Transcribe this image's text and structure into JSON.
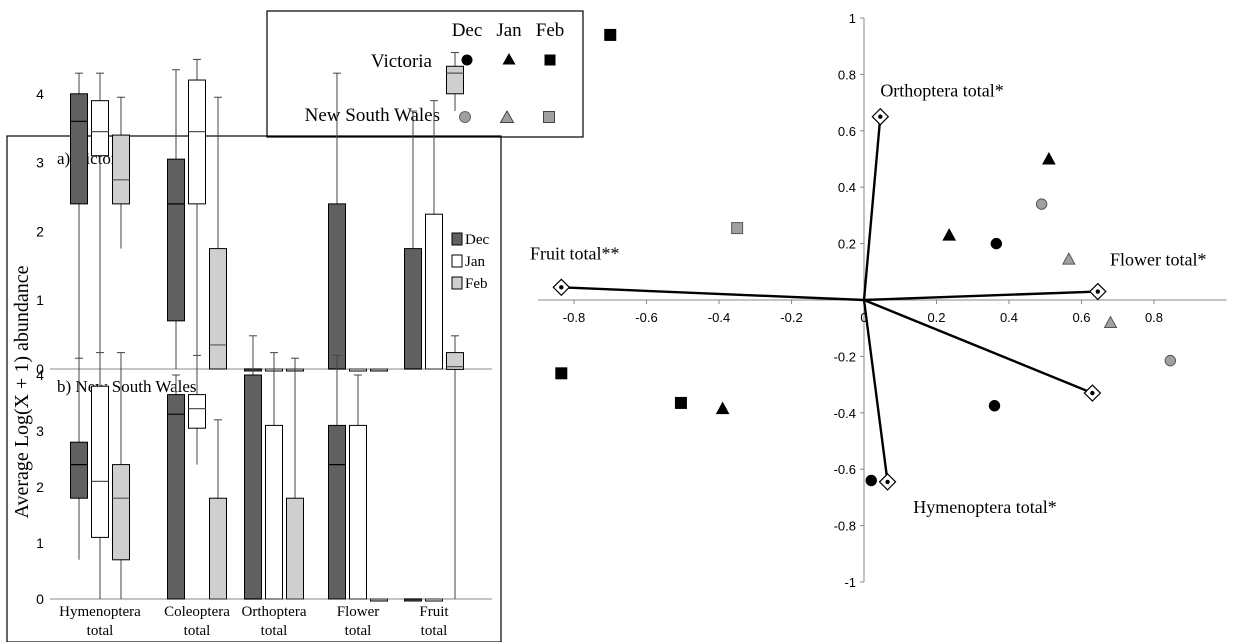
{
  "colors": {
    "dec": "#606060",
    "jan": "#ffffff",
    "feb": "#cfcfcf",
    "nsw_marker": "#a0a0a0",
    "axis": "#888888",
    "ink": "#000000"
  },
  "legend": {
    "months": [
      "Dec",
      "Jan",
      "Feb"
    ],
    "rows": [
      {
        "label": "Victoria",
        "fill": "#000000"
      },
      {
        "label": "New South Wales",
        "fill": "#a0a0a0"
      }
    ]
  },
  "ylabel_shared": "Average Log(X + 1) abundance",
  "chart_data": [
    {
      "type": "box",
      "title": "a) Victoria",
      "categories": [
        "Hymenoptera total",
        "Coleoptera total",
        "Orthoptera total",
        "Flower total",
        "Fruit total"
      ],
      "category_lines": [
        [
          "Hymenoptera",
          "total"
        ],
        [
          "Coleoptera",
          "total"
        ],
        [
          "Orthoptera",
          "total"
        ],
        [
          "Flower",
          "total"
        ],
        [
          "Fruit",
          "total"
        ]
      ],
      "ylim": [
        0,
        4.6
      ],
      "yticks": [
        0,
        1,
        2,
        3,
        4
      ],
      "legend_labels": [
        "Dec",
        "Jan",
        "Feb"
      ],
      "legend_position": "right",
      "series": [
        {
          "name": "Dec",
          "boxes": [
            {
              "min": 0,
              "q1": 2.4,
              "median": 3.6,
              "q3": 4.0,
              "max": 4.3
            },
            {
              "min": 0,
              "q1": 0.7,
              "median": 2.4,
              "q3": 3.05,
              "max": 4.35
            },
            {
              "min": 0,
              "q1": 0,
              "median": 0,
              "q3": 0,
              "max": 0
            },
            {
              "min": 0,
              "q1": 0,
              "median": 0,
              "q3": 2.4,
              "max": 4.3
            },
            {
              "min": 0,
              "q1": 0,
              "median": 0,
              "q3": 1.75,
              "max": 3.75
            }
          ]
        },
        {
          "name": "Jan",
          "boxes": [
            {
              "min": 0,
              "q1": 3.1,
              "median": 3.45,
              "q3": 3.9,
              "max": 4.3
            },
            {
              "min": 0,
              "q1": 2.4,
              "median": 3.45,
              "q3": 4.2,
              "max": 4.5
            },
            {
              "min": 0,
              "q1": 0,
              "median": 0,
              "q3": 0,
              "max": 0
            },
            {
              "min": 0,
              "q1": 0,
              "median": 0,
              "q3": 0,
              "max": 0
            },
            {
              "min": 0,
              "q1": 0,
              "median": 0,
              "q3": 2.25,
              "max": 3.9
            }
          ]
        },
        {
          "name": "Feb",
          "boxes": [
            {
              "min": 1.75,
              "q1": 2.4,
              "median": 2.75,
              "q3": 3.4,
              "max": 3.95
            },
            {
              "min": 0,
              "q1": 0,
              "median": 0.35,
              "q3": 1.75,
              "max": 3.95
            },
            {
              "min": 0,
              "q1": 0,
              "median": 0,
              "q3": 0,
              "max": 0
            },
            {
              "min": 0,
              "q1": 0,
              "median": 0,
              "q3": 0,
              "max": 0
            },
            {
              "min": 3.75,
              "q1": 4.0,
              "median": 4.3,
              "q3": 4.4,
              "max": 4.6
            }
          ]
        }
      ]
    },
    {
      "type": "box",
      "title": "b) New South Wales",
      "categories": [
        "Hymenoptera total",
        "Coleoptera total",
        "Orthoptera total",
        "Flower total",
        "Fruit total"
      ],
      "ylim": [
        0,
        4.6
      ],
      "yticks": [
        0,
        1,
        2,
        3,
        4
      ],
      "series": [
        {
          "name": "Dec",
          "boxes": [
            {
              "min": 0.7,
              "q1": 1.8,
              "median": 2.4,
              "q3": 2.8,
              "max": 4.3
            },
            {
              "min": 0,
              "q1": 0,
              "median": 3.3,
              "q3": 3.65,
              "max": 4.0
            },
            {
              "min": 0,
              "q1": 0,
              "median": 0,
              "q3": 4.0,
              "max": 4.7
            },
            {
              "min": 0,
              "q1": 0,
              "median": 2.4,
              "q3": 3.1,
              "max": 4.35
            },
            {
              "min": 0,
              "q1": 0,
              "median": 0,
              "q3": 0,
              "max": 0
            }
          ]
        },
        {
          "name": "Jan",
          "boxes": [
            {
              "min": 0,
              "q1": 1.1,
              "median": 2.1,
              "q3": 3.8,
              "max": 4.4
            },
            {
              "min": 2.4,
              "q1": 3.05,
              "median": 3.4,
              "q3": 3.65,
              "max": 4.35
            },
            {
              "min": 0,
              "q1": 0,
              "median": 0,
              "q3": 3.1,
              "max": 4.4
            },
            {
              "min": 0,
              "q1": 0,
              "median": 0,
              "q3": 3.1,
              "max": 4.0
            },
            {
              "min": 0,
              "q1": 0,
              "median": 0,
              "q3": 0,
              "max": 0
            }
          ]
        },
        {
          "name": "Feb",
          "boxes": [
            {
              "min": 0,
              "q1": 0.7,
              "median": 1.8,
              "q3": 2.4,
              "max": 4.4
            },
            {
              "min": 0,
              "q1": 0,
              "median": 0,
              "q3": 1.8,
              "max": 3.2
            },
            {
              "min": 0,
              "q1": 0,
              "median": 0,
              "q3": 1.8,
              "max": 4.3
            },
            {
              "min": 0,
              "q1": 0,
              "median": 0,
              "q3": 0,
              "max": 0
            },
            {
              "min": 0,
              "q1": 4.1,
              "median": 4.15,
              "q3": 4.4,
              "max": 4.7
            }
          ]
        }
      ]
    },
    {
      "type": "scatter",
      "title": "",
      "xlim": [
        -0.9,
        1.0
      ],
      "ylim": [
        -1.0,
        1.0
      ],
      "xticks": [
        -0.8,
        -0.6,
        -0.4,
        -0.2,
        0,
        0.2,
        0.4,
        0.6,
        0.8
      ],
      "yticks": [
        -1,
        -0.8,
        -0.6,
        -0.4,
        -0.2,
        0,
        0.2,
        0.4,
        0.6,
        0.8,
        1
      ],
      "vectors": [
        {
          "label": "Orthoptera total*",
          "x": 0.045,
          "y": 0.65
        },
        {
          "label": "Fruit total**",
          "x": -0.835,
          "y": 0.045
        },
        {
          "label": "Flower total*",
          "x": 0.645,
          "y": 0.03
        },
        {
          "label": "Hymenoptera total*",
          "x": 0.63,
          "y": -0.33
        },
        {
          "label": "Hymenoptera total*",
          "x": 0.065,
          "y": -0.645
        }
      ],
      "points": [
        {
          "region": "Victoria",
          "month": "Dec",
          "x": 0.365,
          "y": 0.2
        },
        {
          "region": "Victoria",
          "month": "Dec",
          "x": 0.36,
          "y": -0.375
        },
        {
          "region": "Victoria",
          "month": "Dec",
          "x": 0.02,
          "y": -0.64
        },
        {
          "region": "Victoria",
          "month": "Jan",
          "x": 0.235,
          "y": 0.23
        },
        {
          "region": "Victoria",
          "month": "Jan",
          "x": 0.51,
          "y": 0.5
        },
        {
          "region": "Victoria",
          "month": "Jan",
          "x": -0.39,
          "y": -0.385
        },
        {
          "region": "Victoria",
          "month": "Feb",
          "x": -0.835,
          "y": -0.26
        },
        {
          "region": "Victoria",
          "month": "Feb",
          "x": -0.505,
          "y": -0.365
        },
        {
          "region": "Victoria",
          "month": "Feb",
          "x": -0.7,
          "y": 0.94
        },
        {
          "region": "New South Wales",
          "month": "Dec",
          "x": 0.49,
          "y": 0.34
        },
        {
          "region": "New South Wales",
          "month": "Dec",
          "x": 0.845,
          "y": -0.215
        },
        {
          "region": "New South Wales",
          "month": "Jan",
          "x": 0.565,
          "y": 0.145
        },
        {
          "region": "New South Wales",
          "month": "Jan",
          "x": 0.68,
          "y": -0.08
        },
        {
          "region": "New South Wales",
          "month": "Feb",
          "x": -0.35,
          "y": 0.255
        }
      ]
    }
  ]
}
